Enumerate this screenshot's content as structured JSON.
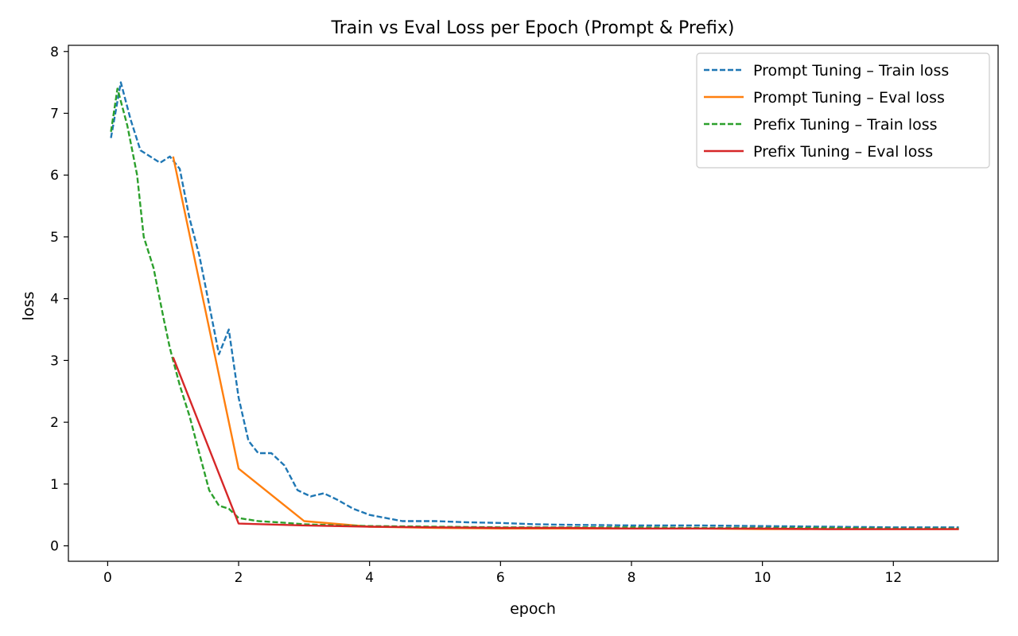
{
  "chart_data": {
    "type": "line",
    "title": "Train vs Eval Loss per Epoch (Prompt & Prefix)",
    "xlabel": "epoch",
    "ylabel": "loss",
    "xlim": [
      -0.6,
      13.6
    ],
    "ylim": [
      -0.25,
      8.1
    ],
    "xticks": [
      "0",
      "2",
      "4",
      "6",
      "8",
      "10",
      "12"
    ],
    "yticks": [
      "0",
      "1",
      "2",
      "3",
      "4",
      "5",
      "6",
      "7",
      "8"
    ],
    "grid": false,
    "legend_position": "top-right",
    "series": [
      {
        "name": "Prompt Tuning – Train loss",
        "style": "dashed",
        "color": "#1f77b4",
        "x": [
          0.05,
          0.2,
          0.35,
          0.5,
          0.65,
          0.8,
          0.95,
          1.1,
          1.25,
          1.4,
          1.55,
          1.7,
          1.85,
          2.0,
          2.15,
          2.3,
          2.5,
          2.7,
          2.9,
          3.1,
          3.3,
          3.5,
          3.75,
          4.0,
          4.5,
          5.0,
          5.5,
          6.0,
          6.5,
          7.0,
          8.0,
          9.0,
          10.0,
          11.0,
          12.0,
          13.0
        ],
        "y": [
          6.6,
          7.5,
          6.9,
          6.4,
          6.3,
          6.2,
          6.3,
          6.1,
          5.3,
          4.7,
          3.9,
          3.1,
          3.5,
          2.4,
          1.7,
          1.5,
          1.5,
          1.3,
          0.9,
          0.8,
          0.85,
          0.75,
          0.6,
          0.5,
          0.4,
          0.4,
          0.38,
          0.37,
          0.35,
          0.34,
          0.33,
          0.33,
          0.32,
          0.31,
          0.3,
          0.3
        ]
      },
      {
        "name": "Prompt Tuning – Eval loss",
        "style": "solid",
        "color": "#ff7f0e",
        "x": [
          1,
          2,
          3,
          4,
          5,
          6,
          7,
          8,
          9,
          10,
          11,
          12,
          13
        ],
        "y": [
          6.3,
          1.25,
          0.4,
          0.31,
          0.29,
          0.28,
          0.28,
          0.28,
          0.28,
          0.27,
          0.27,
          0.27,
          0.27
        ]
      },
      {
        "name": "Prefix Tuning – Train loss",
        "style": "dashed",
        "color": "#2ca02c",
        "x": [
          0.05,
          0.15,
          0.3,
          0.45,
          0.55,
          0.7,
          0.85,
          0.95,
          1.1,
          1.25,
          1.4,
          1.55,
          1.7,
          1.85,
          2.0,
          2.3,
          2.6,
          3.0,
          3.5,
          4.0,
          5.0,
          6.0,
          7.0,
          8.0,
          9.0,
          10.0,
          11.0,
          12.0,
          13.0
        ],
        "y": [
          6.7,
          7.4,
          6.8,
          6.0,
          5.0,
          4.5,
          3.7,
          3.2,
          2.6,
          2.1,
          1.5,
          0.9,
          0.65,
          0.6,
          0.45,
          0.4,
          0.38,
          0.35,
          0.33,
          0.32,
          0.31,
          0.3,
          0.3,
          0.3,
          0.29,
          0.29,
          0.29,
          0.28,
          0.28
        ]
      },
      {
        "name": "Prefix Tuning – Eval loss",
        "style": "solid",
        "color": "#d62728",
        "x": [
          1,
          2,
          3,
          4,
          5,
          6,
          7,
          8,
          9,
          10,
          11,
          12,
          13
        ],
        "y": [
          3.05,
          0.36,
          0.33,
          0.31,
          0.3,
          0.29,
          0.29,
          0.28,
          0.28,
          0.28,
          0.27,
          0.27,
          0.27
        ]
      }
    ]
  }
}
